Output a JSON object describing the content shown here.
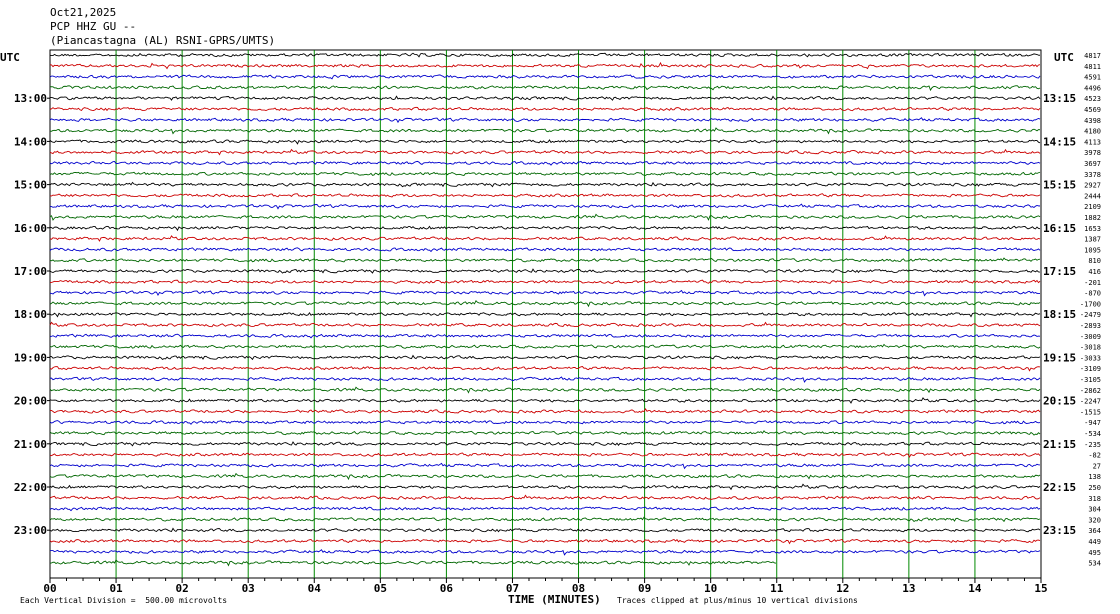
{
  "header": {
    "date": "Oct21,2025",
    "station": "PCP HHZ GU --",
    "location": "(Piancastagna (AL) RSNI-GPRS/UMTS)"
  },
  "utc_left": "UTC",
  "utc_right": "UTC",
  "footer": {
    "scale_text": "Each Vertical Division =  500.00 microvolts",
    "x_title": "TIME (MINUTES)",
    "clip_text": "Traces clipped at plus/minus 10 vertical divisions"
  },
  "chart_data": {
    "type": "line",
    "xlabel": "TIME (MINUTES)",
    "xlim": [
      0,
      15
    ],
    "x_ticks": [
      "00",
      "01",
      "02",
      "03",
      "04",
      "05",
      "06",
      "07",
      "08",
      "09",
      "10",
      "11",
      "12",
      "13",
      "14",
      "15"
    ],
    "left_hour_labels": [
      "13:00",
      "14:00",
      "15:00",
      "16:00",
      "17:00",
      "18:00",
      "19:00",
      "20:00",
      "21:00",
      "22:00",
      "23:00"
    ],
    "right_hour_labels": [
      "13:15",
      "14:15",
      "15:15",
      "16:15",
      "17:15",
      "18:15",
      "19:15",
      "20:15",
      "21:15",
      "22:15",
      "23:15"
    ],
    "first_hour_line_index": 4,
    "trace_colors": [
      "#000000",
      "#cc0000",
      "#0000cc",
      "#006600"
    ],
    "trace_count": 48,
    "last_trace_end_minute": 11,
    "right_values": [
      "4817",
      "4811",
      "4591",
      "4496",
      "4523",
      "4569",
      "4398",
      "4180",
      "4113",
      "3978",
      "3697",
      "3378",
      "2927",
      "2444",
      "2109",
      "1882",
      "1653",
      "1387",
      "1095",
      "810",
      "416",
      "-201",
      "-870",
      "-1700",
      "-2479",
      "-2893",
      "-3009",
      "-3018",
      "-3033",
      "-3109",
      "-3105",
      "-2862",
      "-2247",
      "-1515",
      "-947",
      "-534",
      "-235",
      "-82",
      "27",
      "138",
      "250",
      "318",
      "304",
      "320",
      "364",
      "449",
      "495",
      "534"
    ]
  }
}
